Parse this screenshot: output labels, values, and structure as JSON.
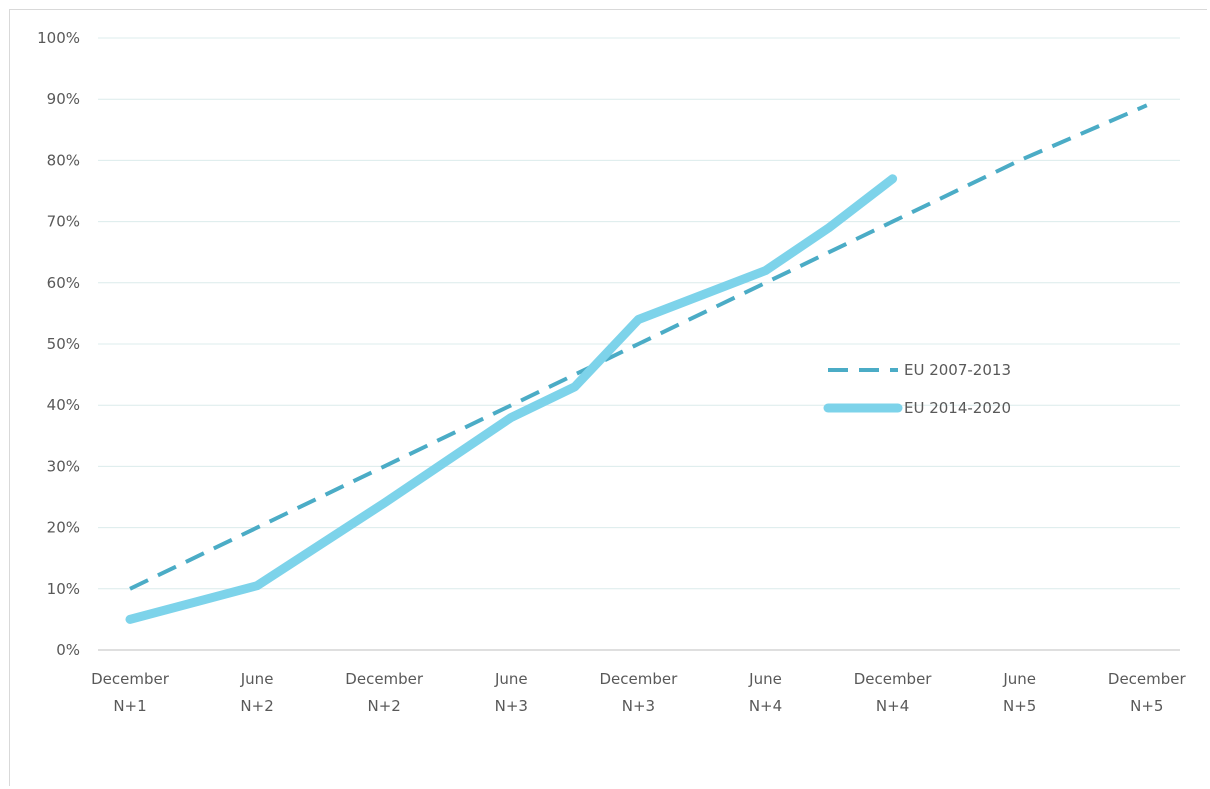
{
  "chart_data": {
    "type": "line",
    "categories": [
      [
        "December",
        "N+1"
      ],
      [
        "June",
        "N+2"
      ],
      [
        "December",
        "N+2"
      ],
      [
        "June",
        "N+3"
      ],
      [
        "December",
        "N+3"
      ],
      [
        "June",
        "N+4"
      ],
      [
        "December",
        "N+4"
      ],
      [
        "June",
        "N+5"
      ],
      [
        "December",
        "N+5"
      ]
    ],
    "ylim": [
      0,
      100
    ],
    "y_ticks": [
      "0%",
      "10%",
      "20%",
      "30%",
      "40%",
      "50%",
      "60%",
      "70%",
      "80%",
      "90%",
      "100%"
    ],
    "grid": true,
    "legend_position": "right-middle",
    "series": [
      {
        "name": "EU 2007-2013",
        "style": "dashed",
        "color": "#4bacc6",
        "points": [
          [
            0,
            10
          ],
          [
            1,
            20
          ],
          [
            2,
            30
          ],
          [
            3,
            40
          ],
          [
            3.5,
            45
          ],
          [
            4,
            50
          ],
          [
            5,
            60
          ],
          [
            6,
            70
          ],
          [
            7,
            80
          ],
          [
            8,
            89
          ]
        ]
      },
      {
        "name": "EU 2014-2020",
        "style": "solid",
        "color": "#7dd3ea",
        "points": [
          [
            0,
            5
          ],
          [
            1,
            10.5
          ],
          [
            2,
            24
          ],
          [
            3,
            38
          ],
          [
            3.5,
            43
          ],
          [
            4,
            54
          ],
          [
            5,
            62
          ],
          [
            5.5,
            69
          ],
          [
            6,
            77
          ]
        ]
      }
    ]
  }
}
